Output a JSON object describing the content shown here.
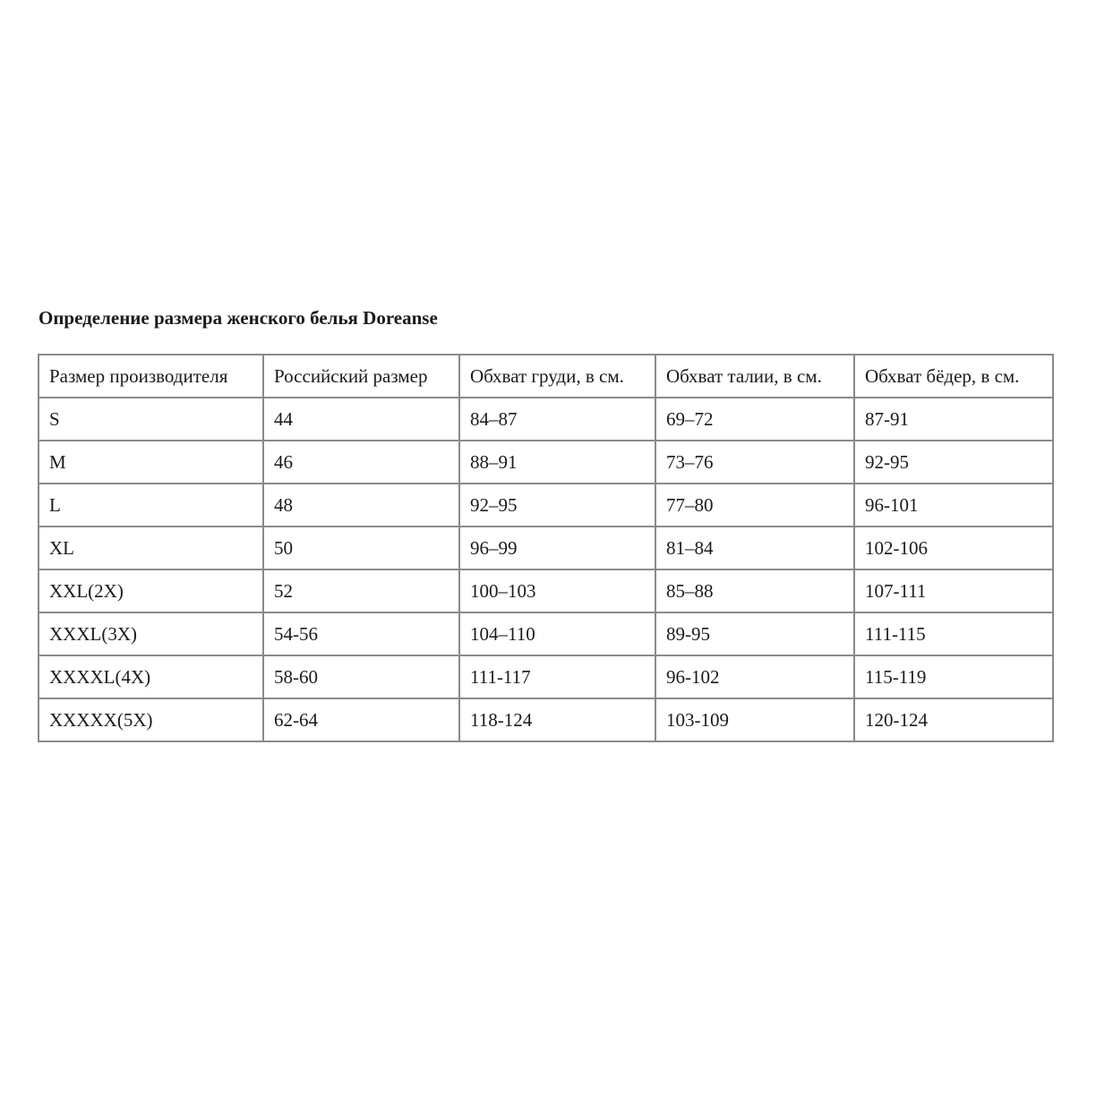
{
  "title": "Определение размера женского белья Doreanse",
  "table": {
    "headers": [
      "Размер производителя",
      "Российский размер",
      "Обхват груди, в см.",
      "Обхват талии, в см.",
      "Обхват бёдер, в см."
    ],
    "rows": [
      [
        "S",
        "44",
        "84–87",
        "69–72",
        "87-91"
      ],
      [
        "M",
        "46",
        "88–91",
        "73–76",
        "92-95"
      ],
      [
        "L",
        "48",
        "92–95",
        "77–80",
        "96-101"
      ],
      [
        "XL",
        "50",
        "96–99",
        "81–84",
        "102-106"
      ],
      [
        "XXL(2X)",
        "52",
        "100–103",
        "85–88",
        "107-111"
      ],
      [
        "XXXL(3X)",
        "54-56",
        "104–110",
        "89-95",
        "111-115"
      ],
      [
        "XXXXL(4X)",
        "58-60",
        "111-117",
        "96-102",
        "115-119"
      ],
      [
        "XXXXX(5X)",
        "62-64",
        "118-124",
        "103-109",
        "120-124"
      ]
    ]
  }
}
